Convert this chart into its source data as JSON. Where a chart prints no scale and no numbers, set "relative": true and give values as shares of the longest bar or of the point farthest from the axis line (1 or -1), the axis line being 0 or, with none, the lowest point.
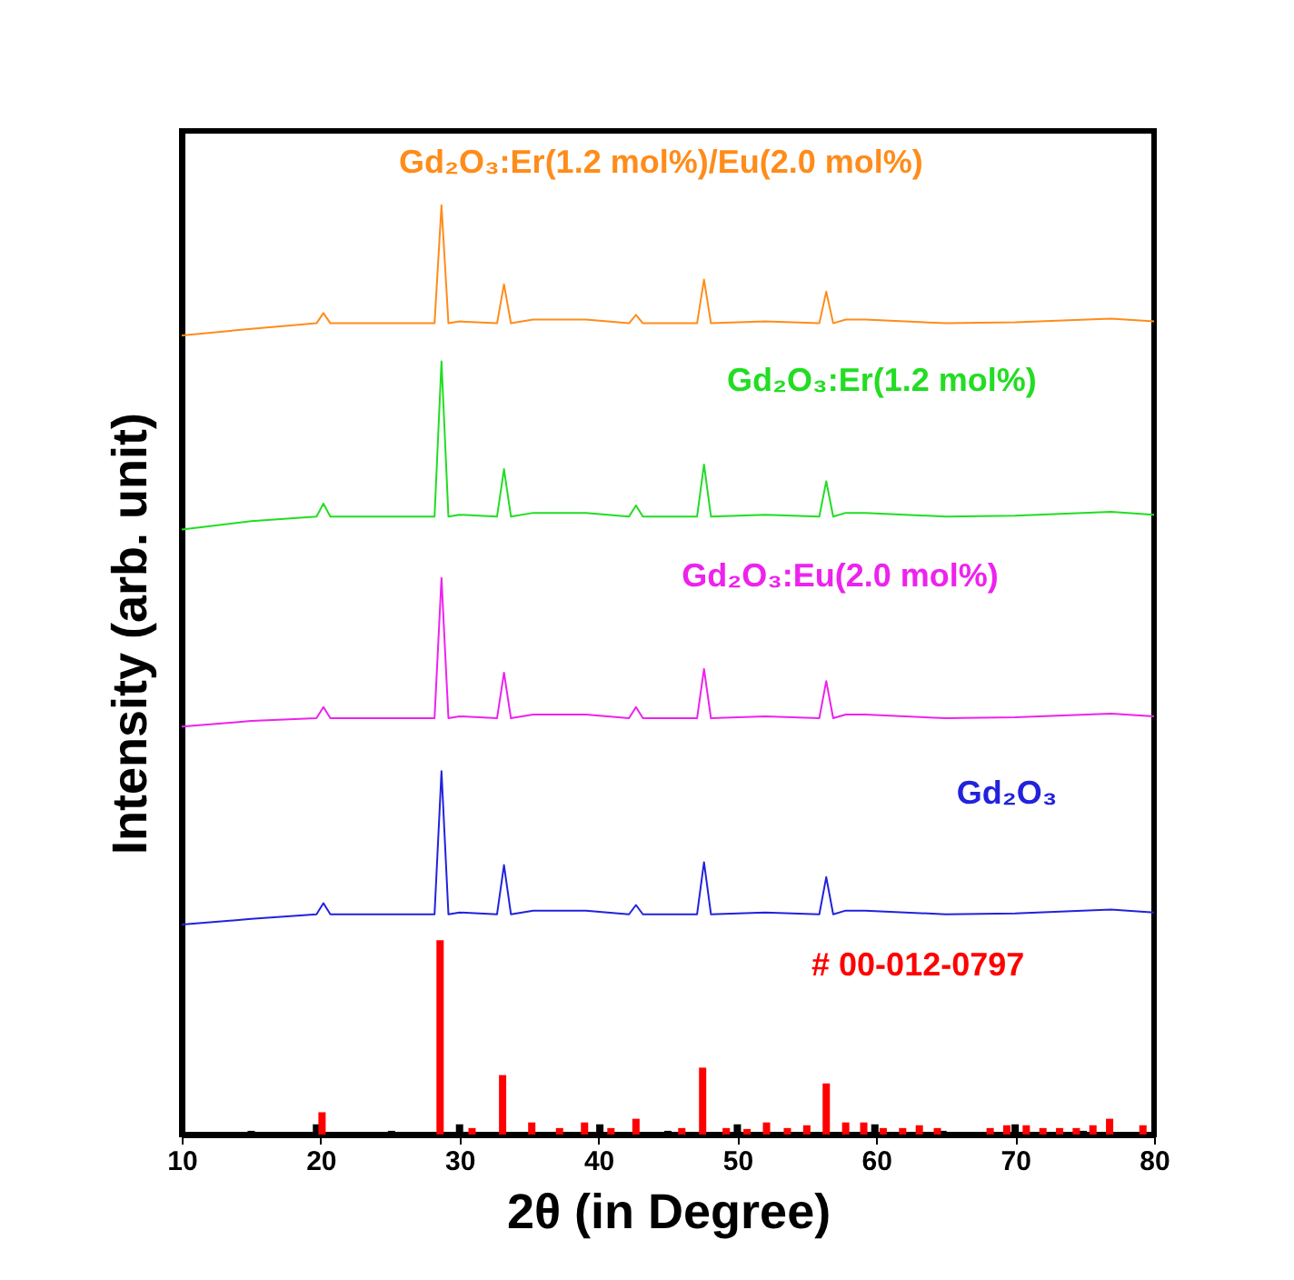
{
  "chart_data": {
    "type": "line",
    "relative": true,
    "xlabel": "2θ (in Degree)",
    "ylabel": "Intensity (arb. unit)",
    "xlim": [
      10,
      80
    ],
    "xticks": [
      10,
      20,
      30,
      40,
      50,
      60,
      70,
      80
    ],
    "tick_labels": "x",
    "grid": false,
    "legend": false,
    "marker": "none",
    "line_style": "solid",
    "x": [
      10,
      15,
      19.7,
      20.2,
      20.7,
      25,
      28.2,
      28.7,
      29.2,
      30,
      32.7,
      33.2,
      33.7,
      35.3,
      39.1,
      42.2,
      42.7,
      43.2,
      47.1,
      47.6,
      48.1,
      52,
      55.9,
      56.4,
      56.9,
      57.8,
      59.2,
      65,
      70,
      76.9,
      80
    ],
    "series": [
      {
        "name": "Gd₂O₃:Er(1.2 mol%)/Eu(2.0 mol%)",
        "color": "#ff8c1a",
        "values": [
          0.86,
          0.867,
          0.873,
          0.884,
          0.873,
          0.873,
          0.873,
          1.0,
          0.873,
          0.875,
          0.873,
          0.915,
          0.873,
          0.877,
          0.877,
          0.873,
          0.882,
          0.873,
          0.873,
          0.92,
          0.873,
          0.875,
          0.873,
          0.907,
          0.873,
          0.877,
          0.877,
          0.873,
          0.874,
          0.878,
          0.875
        ]
      },
      {
        "name": "Gd₂O₃:Er(1.2 mol%)",
        "color": "#22dd22",
        "values": [
          0.651,
          0.66,
          0.665,
          0.679,
          0.665,
          0.665,
          0.665,
          0.832,
          0.665,
          0.667,
          0.665,
          0.716,
          0.665,
          0.669,
          0.669,
          0.665,
          0.677,
          0.665,
          0.665,
          0.721,
          0.665,
          0.667,
          0.665,
          0.703,
          0.665,
          0.669,
          0.669,
          0.665,
          0.666,
          0.67,
          0.667
        ]
      },
      {
        "name": "Gd₂O₃:Eu(2.0 mol%)",
        "color": "#ee22ee",
        "values": [
          0.439,
          0.445,
          0.448,
          0.46,
          0.448,
          0.448,
          0.448,
          0.599,
          0.448,
          0.45,
          0.448,
          0.497,
          0.448,
          0.452,
          0.452,
          0.448,
          0.46,
          0.448,
          0.448,
          0.501,
          0.448,
          0.45,
          0.448,
          0.488,
          0.448,
          0.452,
          0.452,
          0.448,
          0.449,
          0.453,
          0.45
        ]
      },
      {
        "name": "Gd₂O₃",
        "color": "#2222dd",
        "values": [
          0.226,
          0.232,
          0.237,
          0.249,
          0.237,
          0.237,
          0.237,
          0.391,
          0.237,
          0.239,
          0.237,
          0.29,
          0.237,
          0.241,
          0.241,
          0.237,
          0.247,
          0.237,
          0.237,
          0.293,
          0.237,
          0.239,
          0.237,
          0.277,
          0.237,
          0.241,
          0.241,
          0.237,
          0.238,
          0.242,
          0.239
        ]
      },
      {
        "type": "bar",
        "color": "#000000",
        "x": [
          15.0,
          19.7,
          25.1,
          30.0,
          34.8,
          40.1,
          45.0,
          50.0,
          59.9,
          64.8,
          70.0,
          74.9
        ],
        "values": [
          0.004,
          0.011,
          0.004,
          0.011,
          0.002,
          0.011,
          0.004,
          0.011,
          0.011,
          0.004,
          0.011,
          0.004
        ]
      },
      {
        "type": "bar",
        "name": "# 00-012-0797",
        "color": "#ff0000",
        "x": [
          20.1,
          28.6,
          30.9,
          33.1,
          35.2,
          37.2,
          39.0,
          40.9,
          42.7,
          46.0,
          47.5,
          49.2,
          50.7,
          52.1,
          53.6,
          55.0,
          56.4,
          57.8,
          59.1,
          60.5,
          61.9,
          63.1,
          64.4,
          68.2,
          69.4,
          70.8,
          72.0,
          73.2,
          74.4,
          75.6,
          76.8,
          79.2
        ],
        "values": [
          0.024,
          0.209,
          0.007,
          0.064,
          0.013,
          0.007,
          0.013,
          0.007,
          0.017,
          0.007,
          0.072,
          0.007,
          0.006,
          0.013,
          0.007,
          0.01,
          0.055,
          0.013,
          0.013,
          0.007,
          0.007,
          0.01,
          0.007,
          0.007,
          0.01,
          0.01,
          0.007,
          0.007,
          0.007,
          0.01,
          0.017,
          0.01
        ]
      }
    ]
  }
}
